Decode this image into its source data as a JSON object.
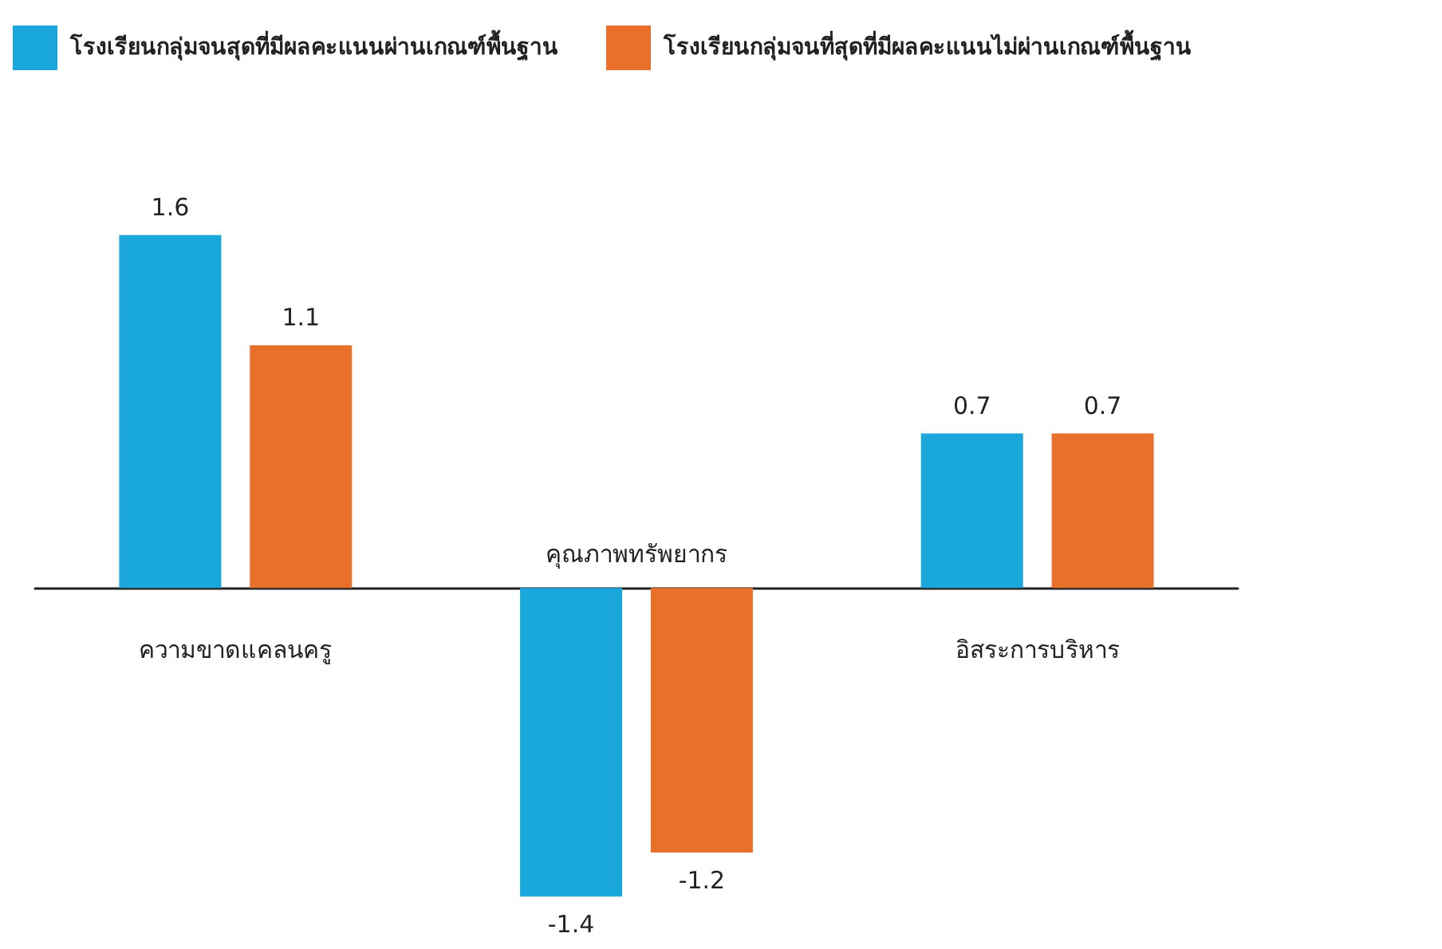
{
  "chart_data": {
    "type": "bar",
    "categories": [
      "ความขาดแคลนครู",
      "คุณภาพทรัพยากร",
      "อิสระการบริหาร"
    ],
    "series": [
      {
        "name": "โรงเรียนกลุ่มจนสุดที่มีผลคะแนนผ่านเกณฑ์พื้นฐาน",
        "color": "#1aa7dc",
        "values": [
          1.6,
          -1.4,
          0.7
        ]
      },
      {
        "name": "โรงเรียนกลุ่มจนที่สุดที่มีผลคะแนนไม่ผ่านเกณฑ์พื้นฐาน",
        "color": "#e8702a",
        "values": [
          1.1,
          -1.2,
          0.7
        ]
      }
    ],
    "data_labels": true,
    "legend": "top left",
    "grid": false
  }
}
